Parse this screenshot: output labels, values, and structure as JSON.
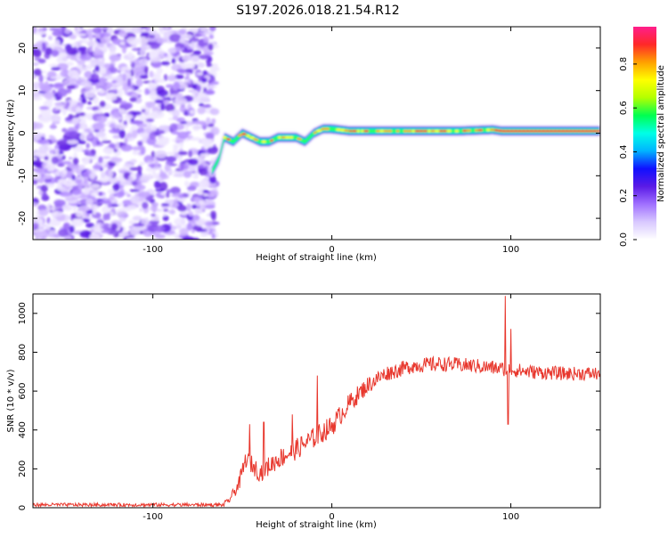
{
  "title": "S197.2026.018.21.54.R12",
  "chart_data": [
    {
      "type": "heatmap",
      "xlabel": "Height of straight line (km)",
      "ylabel": "Frequency (Hz)",
      "xlim": [
        -167,
        150
      ],
      "ylim": [
        -25,
        25
      ],
      "xticks": [
        -100,
        0,
        100
      ],
      "xtick_labels": [
        "-100",
        "0",
        "100"
      ],
      "yticks": [
        -20,
        -10,
        0,
        10,
        20
      ],
      "ytick_labels": [
        "-20",
        "-10",
        "0",
        "10",
        "20"
      ],
      "noise_region_x": [
        -167,
        -67
      ],
      "signal_path": [
        {
          "x": -67,
          "y": -9
        },
        {
          "x": -63,
          "y": -6
        },
        {
          "x": -60,
          "y": -1
        },
        {
          "x": -55,
          "y": -2
        },
        {
          "x": -50,
          "y": 0
        },
        {
          "x": -45,
          "y": -1
        },
        {
          "x": -40,
          "y": -2
        },
        {
          "x": -35,
          "y": -2
        },
        {
          "x": -30,
          "y": -1
        },
        {
          "x": -25,
          "y": -1
        },
        {
          "x": -20,
          "y": -1
        },
        {
          "x": -15,
          "y": -2
        },
        {
          "x": -10,
          "y": 0
        },
        {
          "x": -5,
          "y": 1
        },
        {
          "x": 0,
          "y": 1
        },
        {
          "x": 10,
          "y": 0.5
        },
        {
          "x": 30,
          "y": 0.5
        },
        {
          "x": 50,
          "y": 0.5
        },
        {
          "x": 70,
          "y": 0.5
        },
        {
          "x": 90,
          "y": 0.8
        },
        {
          "x": 95,
          "y": 0.5
        },
        {
          "x": 120,
          "y": 0.5
        },
        {
          "x": 150,
          "y": 0.5
        }
      ],
      "colorbar": {
        "label": "Normalized spectral amplitude",
        "range": [
          0,
          0.97
        ],
        "ticks": [
          0,
          0.2,
          0.4,
          0.6,
          0.8
        ],
        "tick_labels": [
          "0.0",
          "0.2",
          "0.4",
          "0.6",
          "0.8"
        ],
        "colors": [
          "#ffffff",
          "#d8c8ff",
          "#a070ff",
          "#5a1ae6",
          "#1010ff",
          "#00b4ff",
          "#00ffe6",
          "#00ff50",
          "#b4ff00",
          "#ffff00",
          "#ffa000",
          "#ff2828",
          "#ff1e8c"
        ]
      }
    },
    {
      "type": "line",
      "xlabel": "Height of straight line (km)",
      "ylabel": "SNR (10 * v/v)",
      "xlim": [
        -167,
        150
      ],
      "ylim": [
        0,
        1100
      ],
      "xticks": [
        -100,
        0,
        100
      ],
      "xtick_labels": [
        "-100",
        "0",
        "100"
      ],
      "yticks": [
        0,
        200,
        400,
        600,
        800,
        1000
      ],
      "ytick_labels": [
        "0",
        "200",
        "400",
        "600",
        "800",
        "1000"
      ],
      "color": "#e8382e",
      "series_name": "SNR",
      "envelope": [
        {
          "x": -167,
          "y": 20
        },
        {
          "x": -70,
          "y": 20
        },
        {
          "x": -58,
          "y": 30
        },
        {
          "x": -52,
          "y": 120
        },
        {
          "x": -48,
          "y": 250
        },
        {
          "x": -40,
          "y": 180
        },
        {
          "x": -30,
          "y": 250
        },
        {
          "x": -20,
          "y": 300
        },
        {
          "x": -10,
          "y": 360
        },
        {
          "x": 0,
          "y": 420
        },
        {
          "x": 10,
          "y": 540
        },
        {
          "x": 20,
          "y": 630
        },
        {
          "x": 30,
          "y": 690
        },
        {
          "x": 45,
          "y": 730
        },
        {
          "x": 60,
          "y": 740
        },
        {
          "x": 80,
          "y": 730
        },
        {
          "x": 90,
          "y": 720
        },
        {
          "x": 110,
          "y": 700
        },
        {
          "x": 130,
          "y": 690
        },
        {
          "x": 150,
          "y": 690
        }
      ],
      "noise_amplitude": [
        {
          "x": -167,
          "y": 12
        },
        {
          "x": -60,
          "y": 15
        },
        {
          "x": -50,
          "y": 90
        },
        {
          "x": -20,
          "y": 110
        },
        {
          "x": 0,
          "y": 110
        },
        {
          "x": 30,
          "y": 80
        },
        {
          "x": 150,
          "y": 70
        }
      ],
      "spikes": [
        {
          "x": -46,
          "y": 430
        },
        {
          "x": -38,
          "y": 440
        },
        {
          "x": -22,
          "y": 480
        },
        {
          "x": -8,
          "y": 680
        },
        {
          "x": 97,
          "y": 1090
        },
        {
          "x": 98.5,
          "y": 430
        },
        {
          "x": 100,
          "y": 920
        }
      ]
    }
  ]
}
